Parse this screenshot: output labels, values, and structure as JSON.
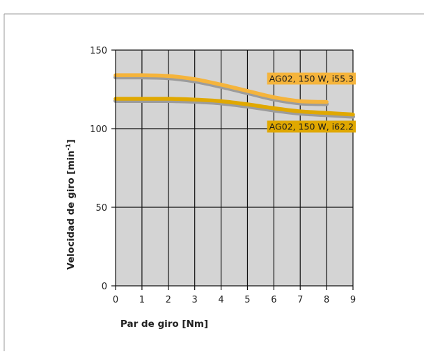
{
  "chart_data": {
    "type": "line",
    "title": "",
    "xlabel": "Par de giro [Nm]",
    "ylabel_main": "Velocidad de giro [min",
    "ylabel_sup": "-1",
    "ylabel_tail": "]",
    "xlim": [
      0,
      9
    ],
    "ylim": [
      0,
      150
    ],
    "x_ticks": [
      0,
      1,
      2,
      3,
      4,
      5,
      6,
      7,
      8,
      9
    ],
    "y_ticks": [
      0,
      50,
      100,
      150
    ],
    "grid": true,
    "series": [
      {
        "name": "AG02, 150 W, i55.3",
        "color": "#f5b43b",
        "x": [
          0,
          1,
          2,
          3,
          4,
          5,
          6,
          7,
          8
        ],
        "y": [
          134,
          134,
          133.5,
          131.5,
          128,
          124,
          120,
          117.5,
          117
        ]
      },
      {
        "name": "AG02, 150 W, i62.2",
        "color": "#e0a800",
        "x": [
          0,
          1,
          2,
          3,
          4,
          5,
          6,
          7,
          8,
          9
        ],
        "y": [
          119,
          119,
          119,
          118.5,
          117.5,
          115.5,
          113,
          111,
          110,
          109
        ]
      }
    ]
  }
}
